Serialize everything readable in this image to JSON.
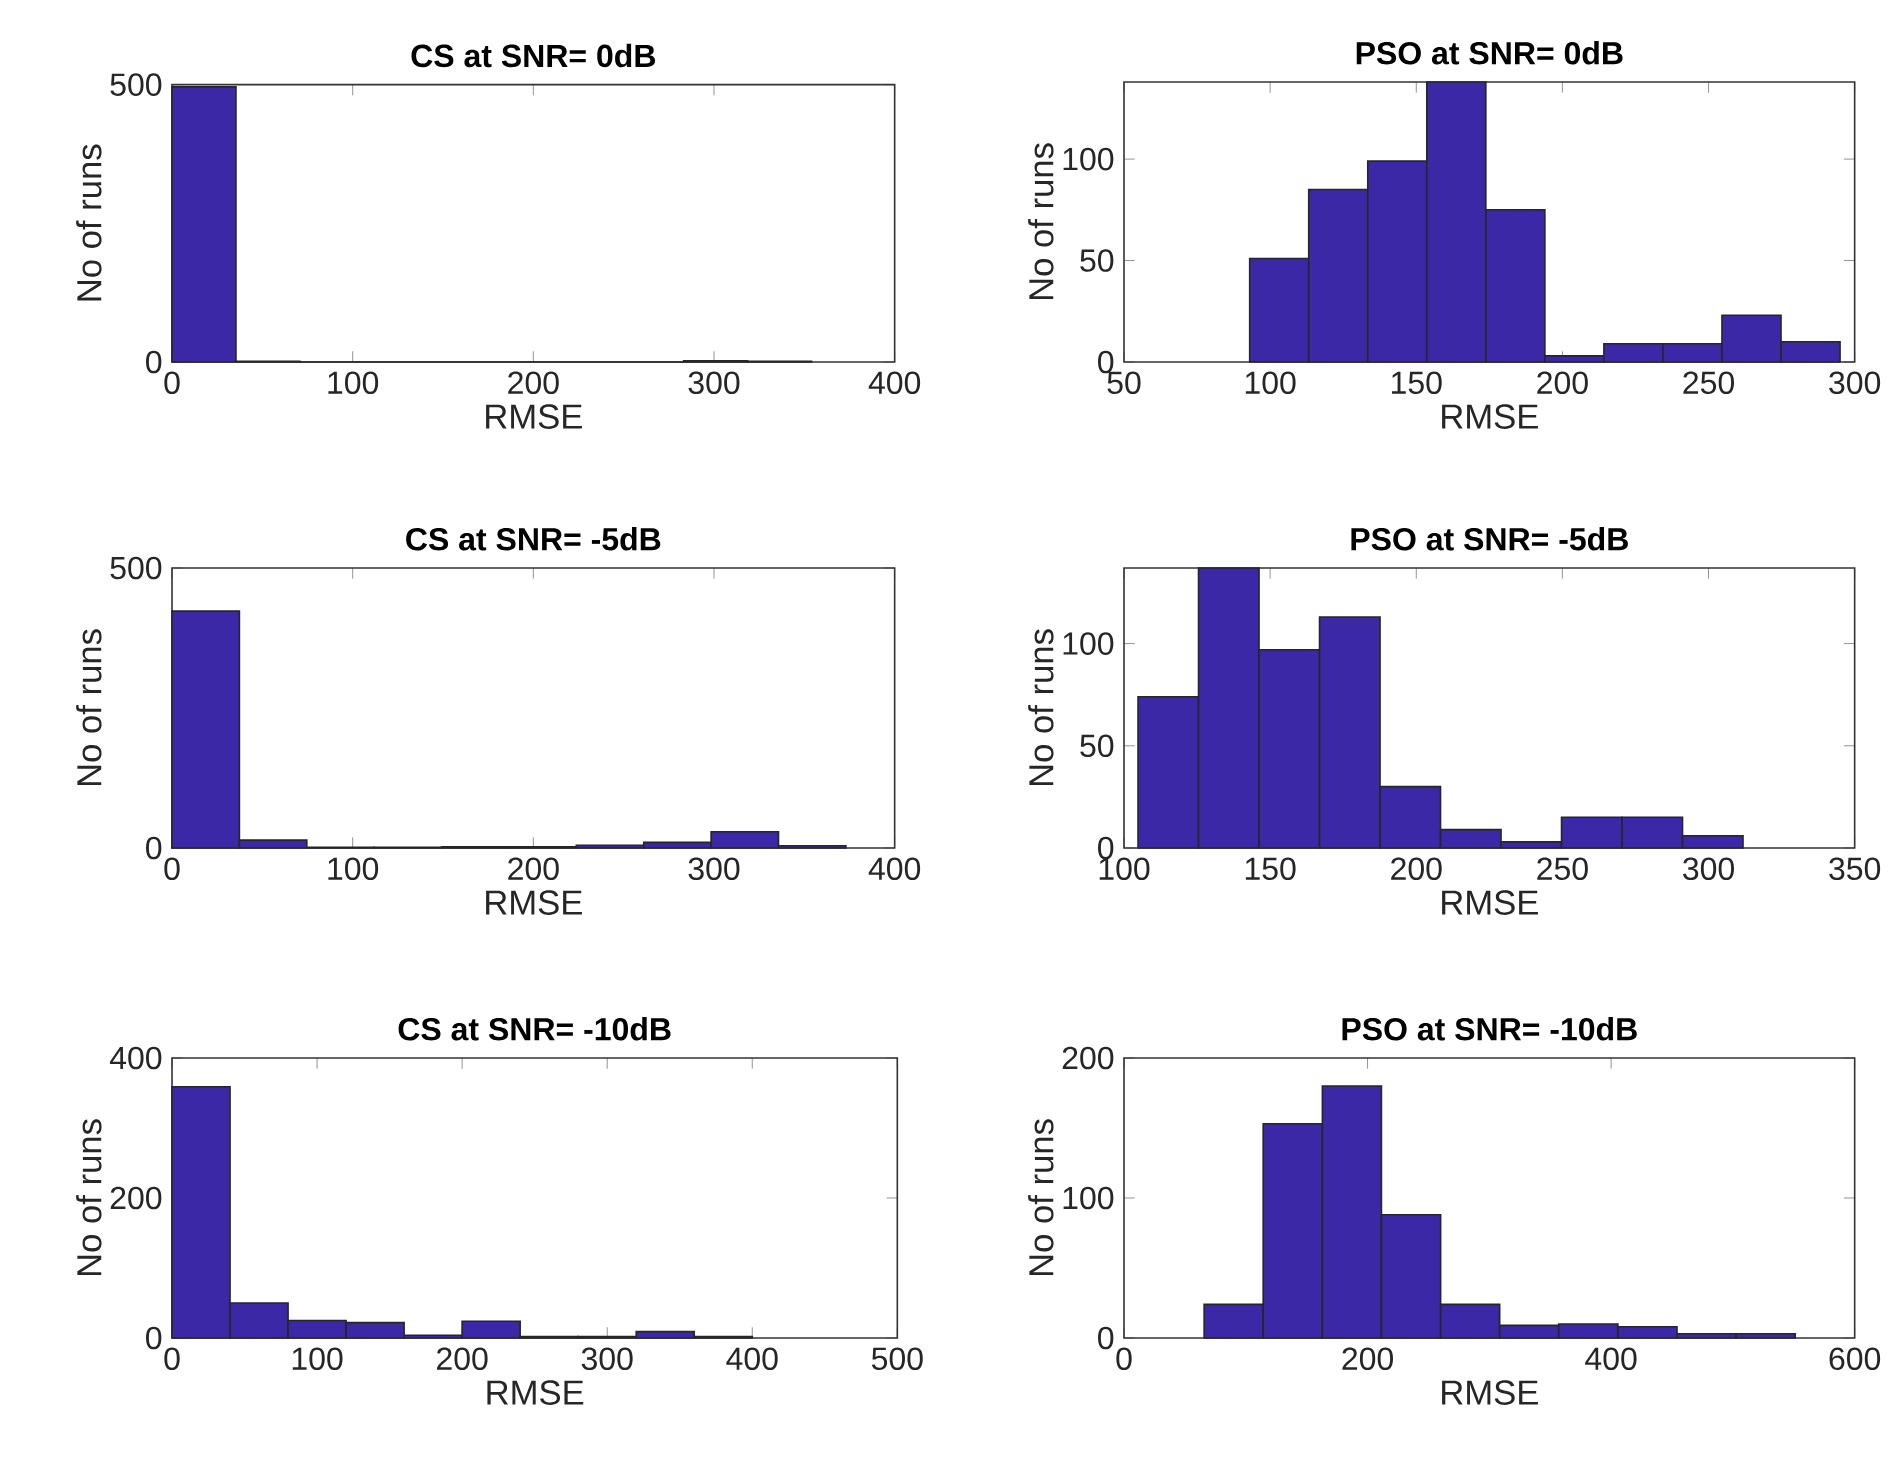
{
  "chart_data": [
    {
      "type": "histogram",
      "title": "CS at SNR= 0dB",
      "xlabel": "RMSE",
      "ylabel": "No of runs",
      "color": "#3b28a6",
      "bins": [
        0,
        35.4,
        70.8,
        106.2,
        141.6,
        177,
        212.4,
        247.8,
        283.2,
        318.6,
        354
      ],
      "values": [
        496,
        1,
        0,
        0,
        0,
        0,
        0,
        0,
        2,
        1
      ],
      "xlim": [
        0,
        400
      ],
      "ylim": [
        0,
        500
      ],
      "xticks": [
        0,
        100,
        200,
        300,
        400
      ],
      "yticks": [
        0,
        500
      ]
    },
    {
      "type": "histogram",
      "title": "PSO at SNR= 0dB",
      "xlabel": "RMSE",
      "ylabel": "No of runs",
      "color": "#3b28a6",
      "bins": [
        93,
        113.2,
        133.4,
        153.6,
        173.8,
        194,
        214.2,
        234.4,
        254.6,
        274.8,
        295
      ],
      "values": [
        51,
        85,
        99,
        138,
        75,
        3,
        9,
        9,
        23,
        10
      ],
      "xlim": [
        50,
        300
      ],
      "ylim": [
        0,
        138
      ],
      "xticks": [
        50,
        100,
        150,
        200,
        250,
        300
      ],
      "yticks": [
        0,
        50,
        100
      ]
    },
    {
      "type": "histogram",
      "title": "CS at SNR= -5dB",
      "xlabel": "RMSE",
      "ylabel": "No of runs",
      "color": "#3b28a6",
      "bins": [
        0,
        37.3,
        74.6,
        111.9,
        149.2,
        186.5,
        223.8,
        261.1,
        298.4,
        335.7,
        373
      ],
      "values": [
        423,
        14,
        1,
        1,
        2,
        2,
        5,
        10,
        29,
        4
      ],
      "xlim": [
        0,
        400
      ],
      "ylim": [
        0,
        500
      ],
      "xticks": [
        0,
        100,
        200,
        300,
        400
      ],
      "yticks": [
        0,
        500
      ]
    },
    {
      "type": "histogram",
      "title": "PSO at SNR= -5dB",
      "xlabel": "RMSE",
      "ylabel": "No of runs",
      "color": "#3b28a6",
      "bins": [
        104.8,
        125.5,
        146.2,
        166.9,
        187.6,
        208.3,
        229,
        249.7,
        270.4,
        291.1,
        311.8
      ],
      "values": [
        74,
        137,
        97,
        113,
        30,
        9,
        3,
        15,
        15,
        6
      ],
      "xlim": [
        100,
        350
      ],
      "ylim": [
        0,
        137
      ],
      "xticks": [
        100,
        150,
        200,
        250,
        300,
        350
      ],
      "yticks": [
        0,
        50,
        100
      ]
    },
    {
      "type": "histogram",
      "title": "CS at SNR= -10dB",
      "xlabel": "RMSE",
      "ylabel": "No of runs",
      "color": "#3b28a6",
      "bins": [
        0,
        40,
        80,
        120,
        160,
        200,
        240,
        280,
        320,
        360,
        400
      ],
      "values": [
        359,
        50,
        25,
        22,
        4,
        24,
        2,
        2,
        9,
        2
      ],
      "xlim": [
        0,
        500
      ],
      "ylim": [
        0,
        400
      ],
      "xticks": [
        0,
        100,
        200,
        300,
        400,
        500
      ],
      "yticks": [
        0,
        200,
        400
      ]
    },
    {
      "type": "histogram",
      "title": "PSO at SNR= -10dB",
      "xlabel": "RMSE",
      "ylabel": "No of runs",
      "color": "#3b28a6",
      "bins": [
        65.8,
        114.3,
        162.9,
        211.4,
        260,
        308.5,
        357,
        405.6,
        454.1,
        502.7,
        551.2
      ],
      "values": [
        24,
        153,
        180,
        88,
        24,
        9,
        10,
        8,
        3,
        3
      ],
      "xlim": [
        0,
        600
      ],
      "ylim": [
        0,
        200
      ],
      "xticks": [
        0,
        200,
        400,
        600
      ],
      "yticks": [
        0,
        100,
        200
      ]
    }
  ]
}
